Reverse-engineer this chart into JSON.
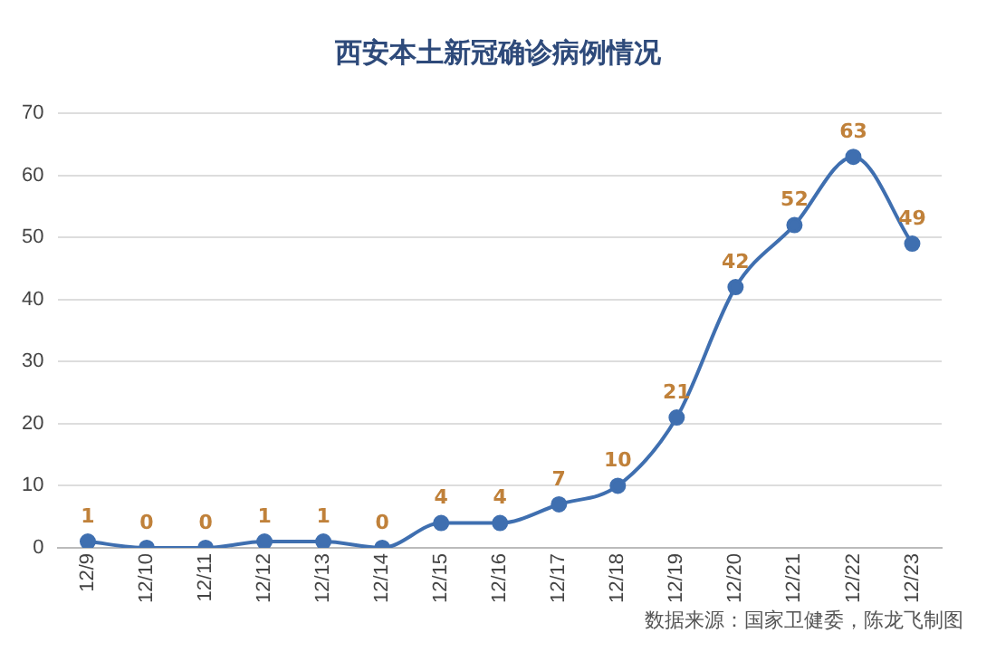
{
  "chart_data": {
    "type": "line",
    "title": "西安本土新冠确诊病例情况",
    "categories": [
      "12/9",
      "12/10",
      "12/11",
      "12/12",
      "12/13",
      "12/14",
      "12/15",
      "12/16",
      "12/17",
      "12/18",
      "12/19",
      "12/20",
      "12/21",
      "12/22",
      "12/23"
    ],
    "series": [
      {
        "color": "#3f6fb0",
        "values": [
          1,
          0,
          0,
          1,
          1,
          0,
          4,
          4,
          7,
          10,
          21,
          42,
          52,
          63,
          49
        ]
      }
    ],
    "ylim": [
      0,
      70
    ],
    "yticks": [
      0,
      10,
      20,
      30,
      40,
      50,
      60,
      70
    ],
    "grid": "y",
    "legend": false,
    "marker": "circle",
    "line_style": "solid",
    "data_labels": true,
    "annotations": [
      "数据来源：国家卫健委，陈龙飞制图"
    ]
  }
}
